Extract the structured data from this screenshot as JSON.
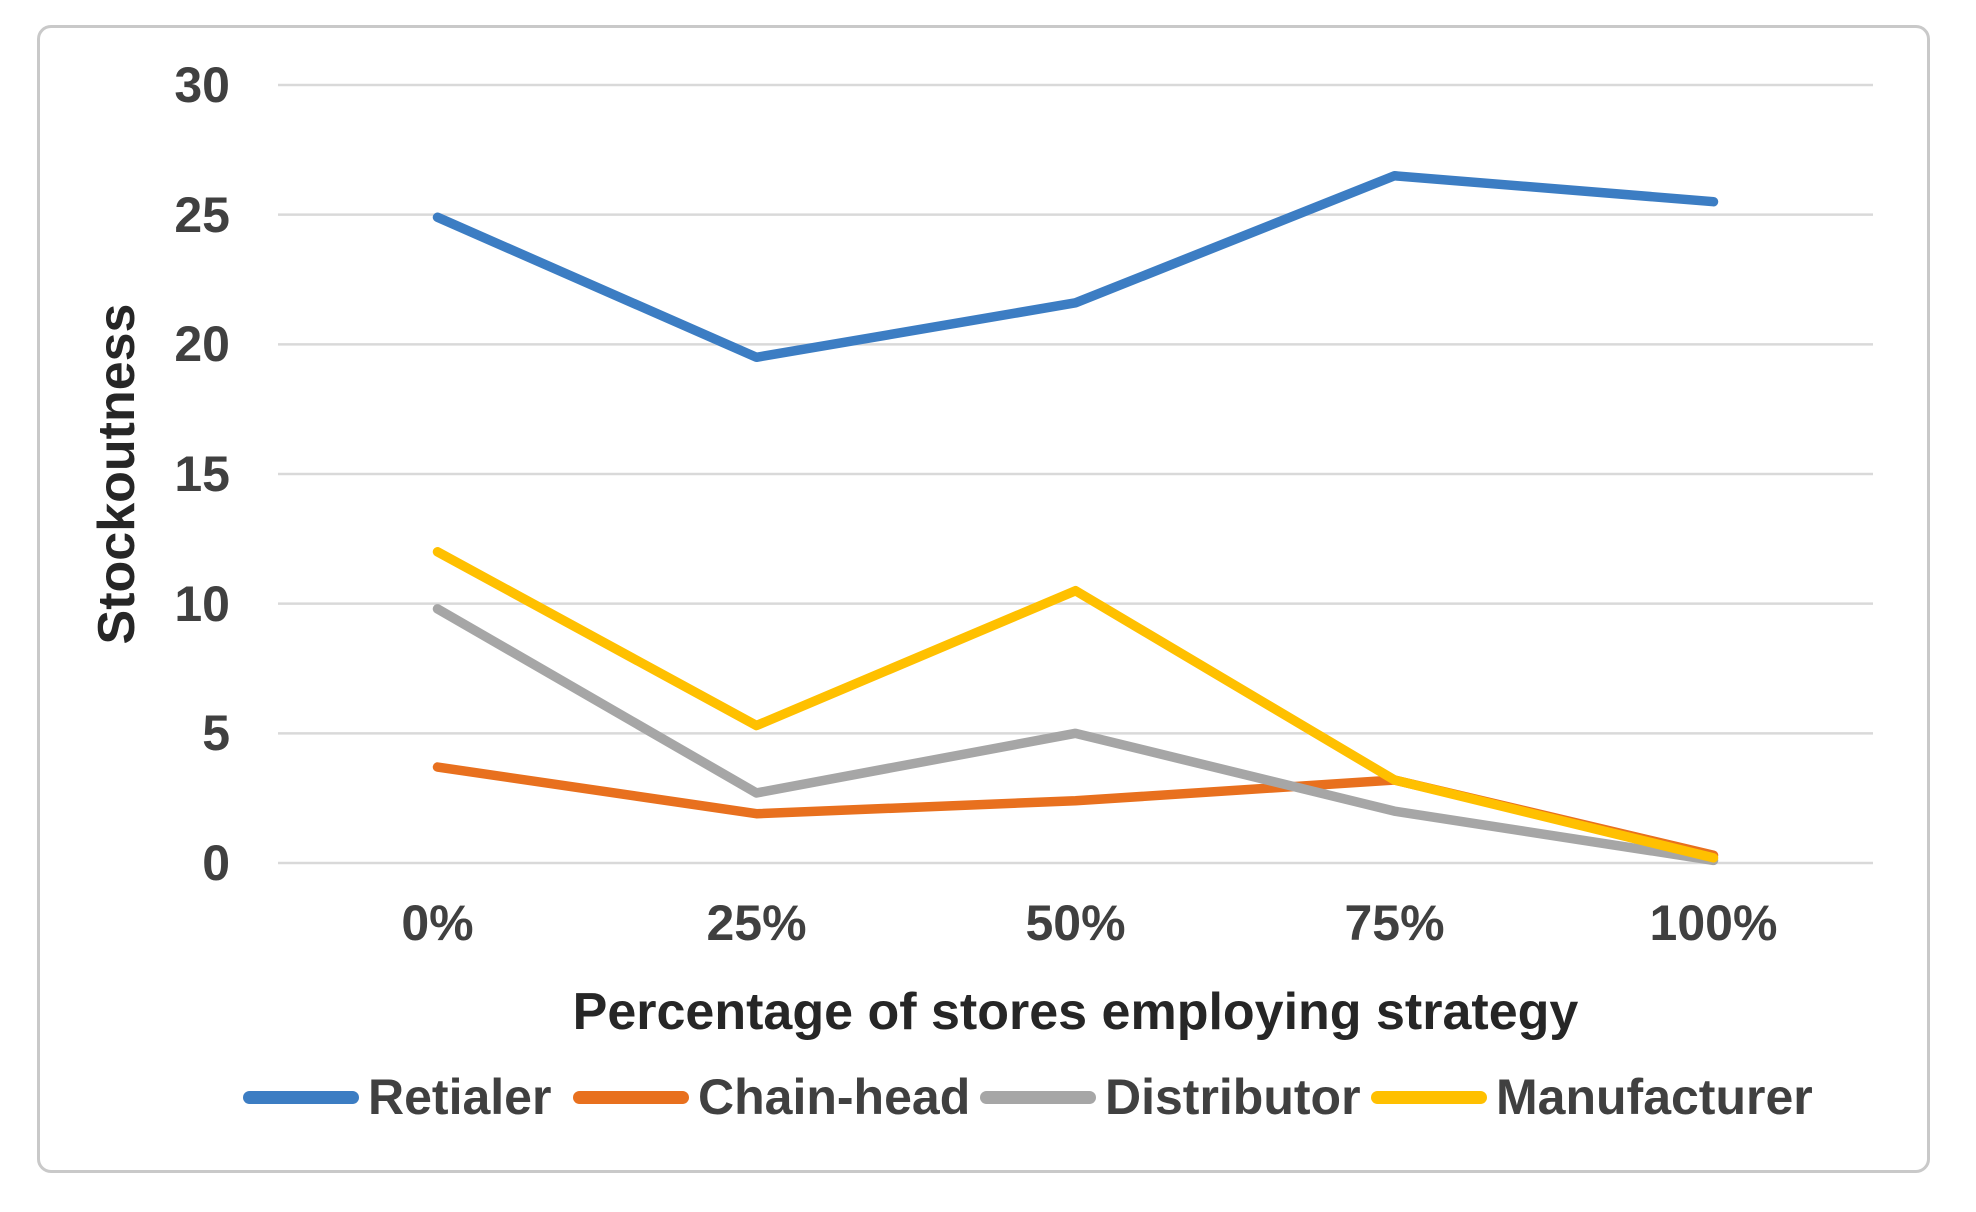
{
  "figure": {
    "border_color": "#c9c9c9",
    "background": "#ffffff",
    "text_color": "#404040",
    "gridline_color": "#d9d9d9"
  },
  "chart_data": {
    "type": "line",
    "title": "",
    "xlabel": "Percentage of stores employing strategy",
    "ylabel": "Stockoutness",
    "categories": [
      "0%",
      "25%",
      "50%",
      "75%",
      "100%"
    ],
    "ylim": [
      0,
      30
    ],
    "ytick_step": 5,
    "ytick_labels": [
      "30",
      "25",
      "20",
      "15",
      "10",
      "5",
      "0"
    ],
    "grid": "horizontal-only",
    "legend_position": "bottom",
    "series": [
      {
        "name": "Retialer",
        "color": "#3c7dc3",
        "values": [
          24.9,
          19.5,
          21.6,
          26.5,
          25.5
        ]
      },
      {
        "name": "Chain-head",
        "color": "#e8701e",
        "values": [
          3.7,
          1.9,
          2.4,
          3.2,
          0.3
        ]
      },
      {
        "name": "Distributor",
        "color": "#a6a6a6",
        "values": [
          9.8,
          2.7,
          5.0,
          2.0,
          0.1
        ]
      },
      {
        "name": "Manufacturer",
        "color": "#ffc000",
        "values": [
          12.0,
          5.3,
          10.5,
          3.2,
          0.2
        ]
      }
    ]
  }
}
